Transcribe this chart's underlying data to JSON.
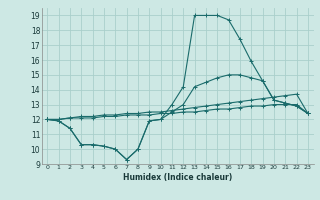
{
  "xlabel": "Humidex (Indice chaleur)",
  "xlim": [
    -0.5,
    23.5
  ],
  "ylim": [
    9,
    19.5
  ],
  "yticks": [
    9,
    10,
    11,
    12,
    13,
    14,
    15,
    16,
    17,
    18,
    19
  ],
  "xticks": [
    0,
    1,
    2,
    3,
    4,
    5,
    6,
    7,
    8,
    9,
    10,
    11,
    12,
    13,
    14,
    15,
    16,
    17,
    18,
    19,
    20,
    21,
    22,
    23
  ],
  "bg_color": "#cde8e4",
  "grid_color": "#aacfcb",
  "line_color": "#1a6b6b",
  "lines": [
    {
      "x": [
        0,
        1,
        2,
        3,
        4,
        5,
        6,
        7,
        8,
        9,
        10,
        11,
        12,
        13,
        14,
        15,
        16,
        17,
        18,
        19,
        20,
        21,
        22,
        23
      ],
      "y": [
        12.0,
        11.9,
        11.4,
        10.3,
        10.3,
        10.2,
        10.0,
        9.3,
        10.0,
        11.9,
        12.0,
        13.0,
        14.2,
        19.0,
        19.0,
        19.0,
        18.7,
        17.4,
        15.9,
        14.6,
        13.3,
        13.1,
        12.9,
        12.4
      ]
    },
    {
      "x": [
        0,
        1,
        2,
        3,
        4,
        5,
        6,
        7,
        8,
        9,
        10,
        11,
        12,
        13,
        14,
        15,
        16,
        17,
        18,
        19,
        20,
        21,
        22,
        23
      ],
      "y": [
        12.0,
        11.9,
        11.4,
        10.3,
        10.3,
        10.2,
        10.0,
        9.3,
        10.0,
        11.9,
        12.0,
        12.5,
        13.0,
        14.2,
        14.5,
        14.8,
        15.0,
        15.0,
        14.8,
        14.6,
        13.3,
        13.1,
        12.9,
        12.4
      ]
    },
    {
      "x": [
        0,
        1,
        2,
        3,
        4,
        5,
        6,
        7,
        8,
        9,
        10,
        11,
        12,
        13,
        14,
        15,
        16,
        17,
        18,
        19,
        20,
        21,
        22,
        23
      ],
      "y": [
        12.0,
        12.0,
        12.1,
        12.2,
        12.2,
        12.3,
        12.3,
        12.4,
        12.4,
        12.5,
        12.5,
        12.6,
        12.7,
        12.8,
        12.9,
        13.0,
        13.1,
        13.2,
        13.3,
        13.4,
        13.5,
        13.6,
        13.7,
        12.4
      ]
    },
    {
      "x": [
        0,
        1,
        2,
        3,
        4,
        5,
        6,
        7,
        8,
        9,
        10,
        11,
        12,
        13,
        14,
        15,
        16,
        17,
        18,
        19,
        20,
        21,
        22,
        23
      ],
      "y": [
        12.0,
        12.0,
        12.1,
        12.1,
        12.1,
        12.2,
        12.2,
        12.3,
        12.3,
        12.3,
        12.4,
        12.4,
        12.5,
        12.5,
        12.6,
        12.7,
        12.7,
        12.8,
        12.9,
        12.9,
        13.0,
        13.0,
        13.0,
        12.4
      ]
    }
  ]
}
